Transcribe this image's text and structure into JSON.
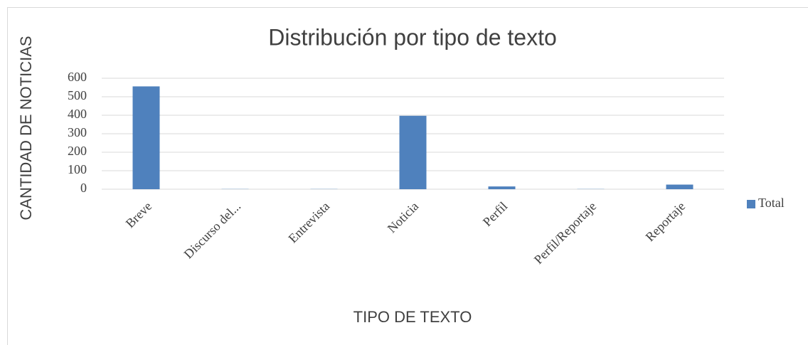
{
  "chart_data": {
    "type": "bar",
    "title": "Distribución por tipo de texto",
    "x_label": "TIPO DE TEXTO",
    "y_label": "CANTIDAD DE NOTICIAS",
    "categories": [
      "Breve",
      "Discurso del...",
      "Entrevista",
      "Noticia",
      "Perfil",
      "Perfil/Reportaje",
      "Reportaje"
    ],
    "series": [
      {
        "name": "Total",
        "color": "#4f81bd",
        "values": [
          556,
          1,
          1,
          397,
          15,
          1,
          25
        ]
      }
    ],
    "ylim": [
      0,
      600
    ],
    "yticks": [
      0,
      100,
      200,
      300,
      400,
      500,
      600
    ],
    "grid": true,
    "legend": "right"
  }
}
